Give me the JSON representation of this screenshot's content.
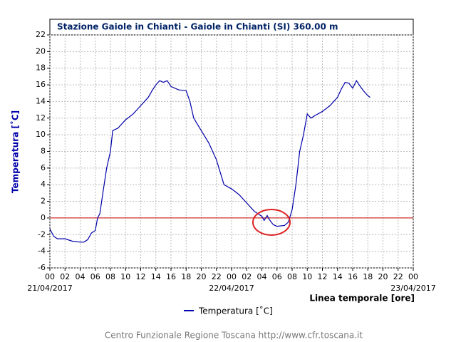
{
  "chart_data": {
    "type": "line",
    "title": "Stazione Gaiole in Chianti - Gaiole in Chianti (SI) 360.00 m",
    "y_label": "Temperatura [˚C]",
    "x_label": "Linea temporale [ore]",
    "footer": "Centro Funzionale Regione Toscana http://www.cfr.toscana.it",
    "date_labels": [
      {
        "value": 0,
        "label": "21/04/2017"
      },
      {
        "value": 24,
        "label": "22/04/2017"
      },
      {
        "value": 48,
        "label": "23/04/2017"
      }
    ],
    "reference_line": {
      "value": 0,
      "color": "#cc0000"
    },
    "grid": true,
    "xlim": [
      0,
      48
    ],
    "xticks": [
      {
        "value": 0,
        "label": "00"
      },
      {
        "value": 2,
        "label": "02"
      },
      {
        "value": 4,
        "label": "04"
      },
      {
        "value": 6,
        "label": "06"
      },
      {
        "value": 8,
        "label": "08"
      },
      {
        "value": 10,
        "label": "10"
      },
      {
        "value": 12,
        "label": "12"
      },
      {
        "value": 14,
        "label": "14"
      },
      {
        "value": 16,
        "label": "16"
      },
      {
        "value": 18,
        "label": "18"
      },
      {
        "value": 20,
        "label": "20"
      },
      {
        "value": 22,
        "label": "22"
      },
      {
        "value": 24,
        "label": "00"
      },
      {
        "value": 26,
        "label": "02"
      },
      {
        "value": 28,
        "label": "04"
      },
      {
        "value": 30,
        "label": "06"
      },
      {
        "value": 32,
        "label": "08"
      },
      {
        "value": 34,
        "label": "10"
      },
      {
        "value": 36,
        "label": "12"
      },
      {
        "value": 38,
        "label": "14"
      },
      {
        "value": 40,
        "label": "16"
      },
      {
        "value": 42,
        "label": "18"
      },
      {
        "value": 44,
        "label": "20"
      },
      {
        "value": 46,
        "label": "22"
      },
      {
        "value": 48,
        "label": "00"
      }
    ],
    "ylim": [
      -6,
      22
    ],
    "yticks": [
      -6,
      -4,
      -2,
      0,
      2,
      4,
      6,
      8,
      10,
      12,
      14,
      16,
      18,
      20,
      22
    ],
    "x": [
      0,
      0.5,
      1,
      2,
      3,
      4,
      4.5,
      5,
      5.5,
      6,
      6.3,
      6.6,
      7,
      7.5,
      8,
      8.3,
      9,
      10,
      11,
      11.5,
      12,
      13,
      13.5,
      14,
      14.5,
      15,
      15.5,
      16,
      17,
      18,
      18.5,
      19,
      20,
      21,
      22,
      22.5,
      23,
      24,
      25,
      26,
      27,
      28,
      28.3,
      28.7,
      29,
      29.5,
      30,
      31,
      31.5,
      32,
      32.5,
      33,
      33.5,
      34,
      34.5,
      35,
      36,
      37,
      38,
      38.5,
      39,
      39.5,
      40,
      40.5,
      41,
      41.5,
      42,
      42.3
    ],
    "series": [
      {
        "name": "Temperatura [˚C]",
        "color": "#0000aa",
        "values": [
          -1.3,
          -2.2,
          -2.5,
          -2.5,
          -2.8,
          -2.9,
          -2.9,
          -2.6,
          -1.8,
          -1.5,
          0,
          0.5,
          3,
          6,
          8,
          10.5,
          10.8,
          11.8,
          12.5,
          13,
          13.5,
          14.5,
          15.3,
          16,
          16.5,
          16.3,
          16.5,
          15.8,
          15.4,
          15.3,
          14,
          12,
          10.5,
          9,
          7,
          5.5,
          4,
          3.5,
          2.8,
          1.8,
          0.8,
          0.2,
          -0.3,
          0.3,
          -0.2,
          -0.8,
          -1,
          -0.9,
          -0.5,
          1,
          4,
          8,
          10,
          12.5,
          12,
          12.3,
          12.8,
          13.5,
          14.5,
          15.5,
          16.3,
          16.2,
          15.6,
          16.5,
          15.8,
          15.2,
          14.7,
          14.5
        ]
      }
    ]
  }
}
